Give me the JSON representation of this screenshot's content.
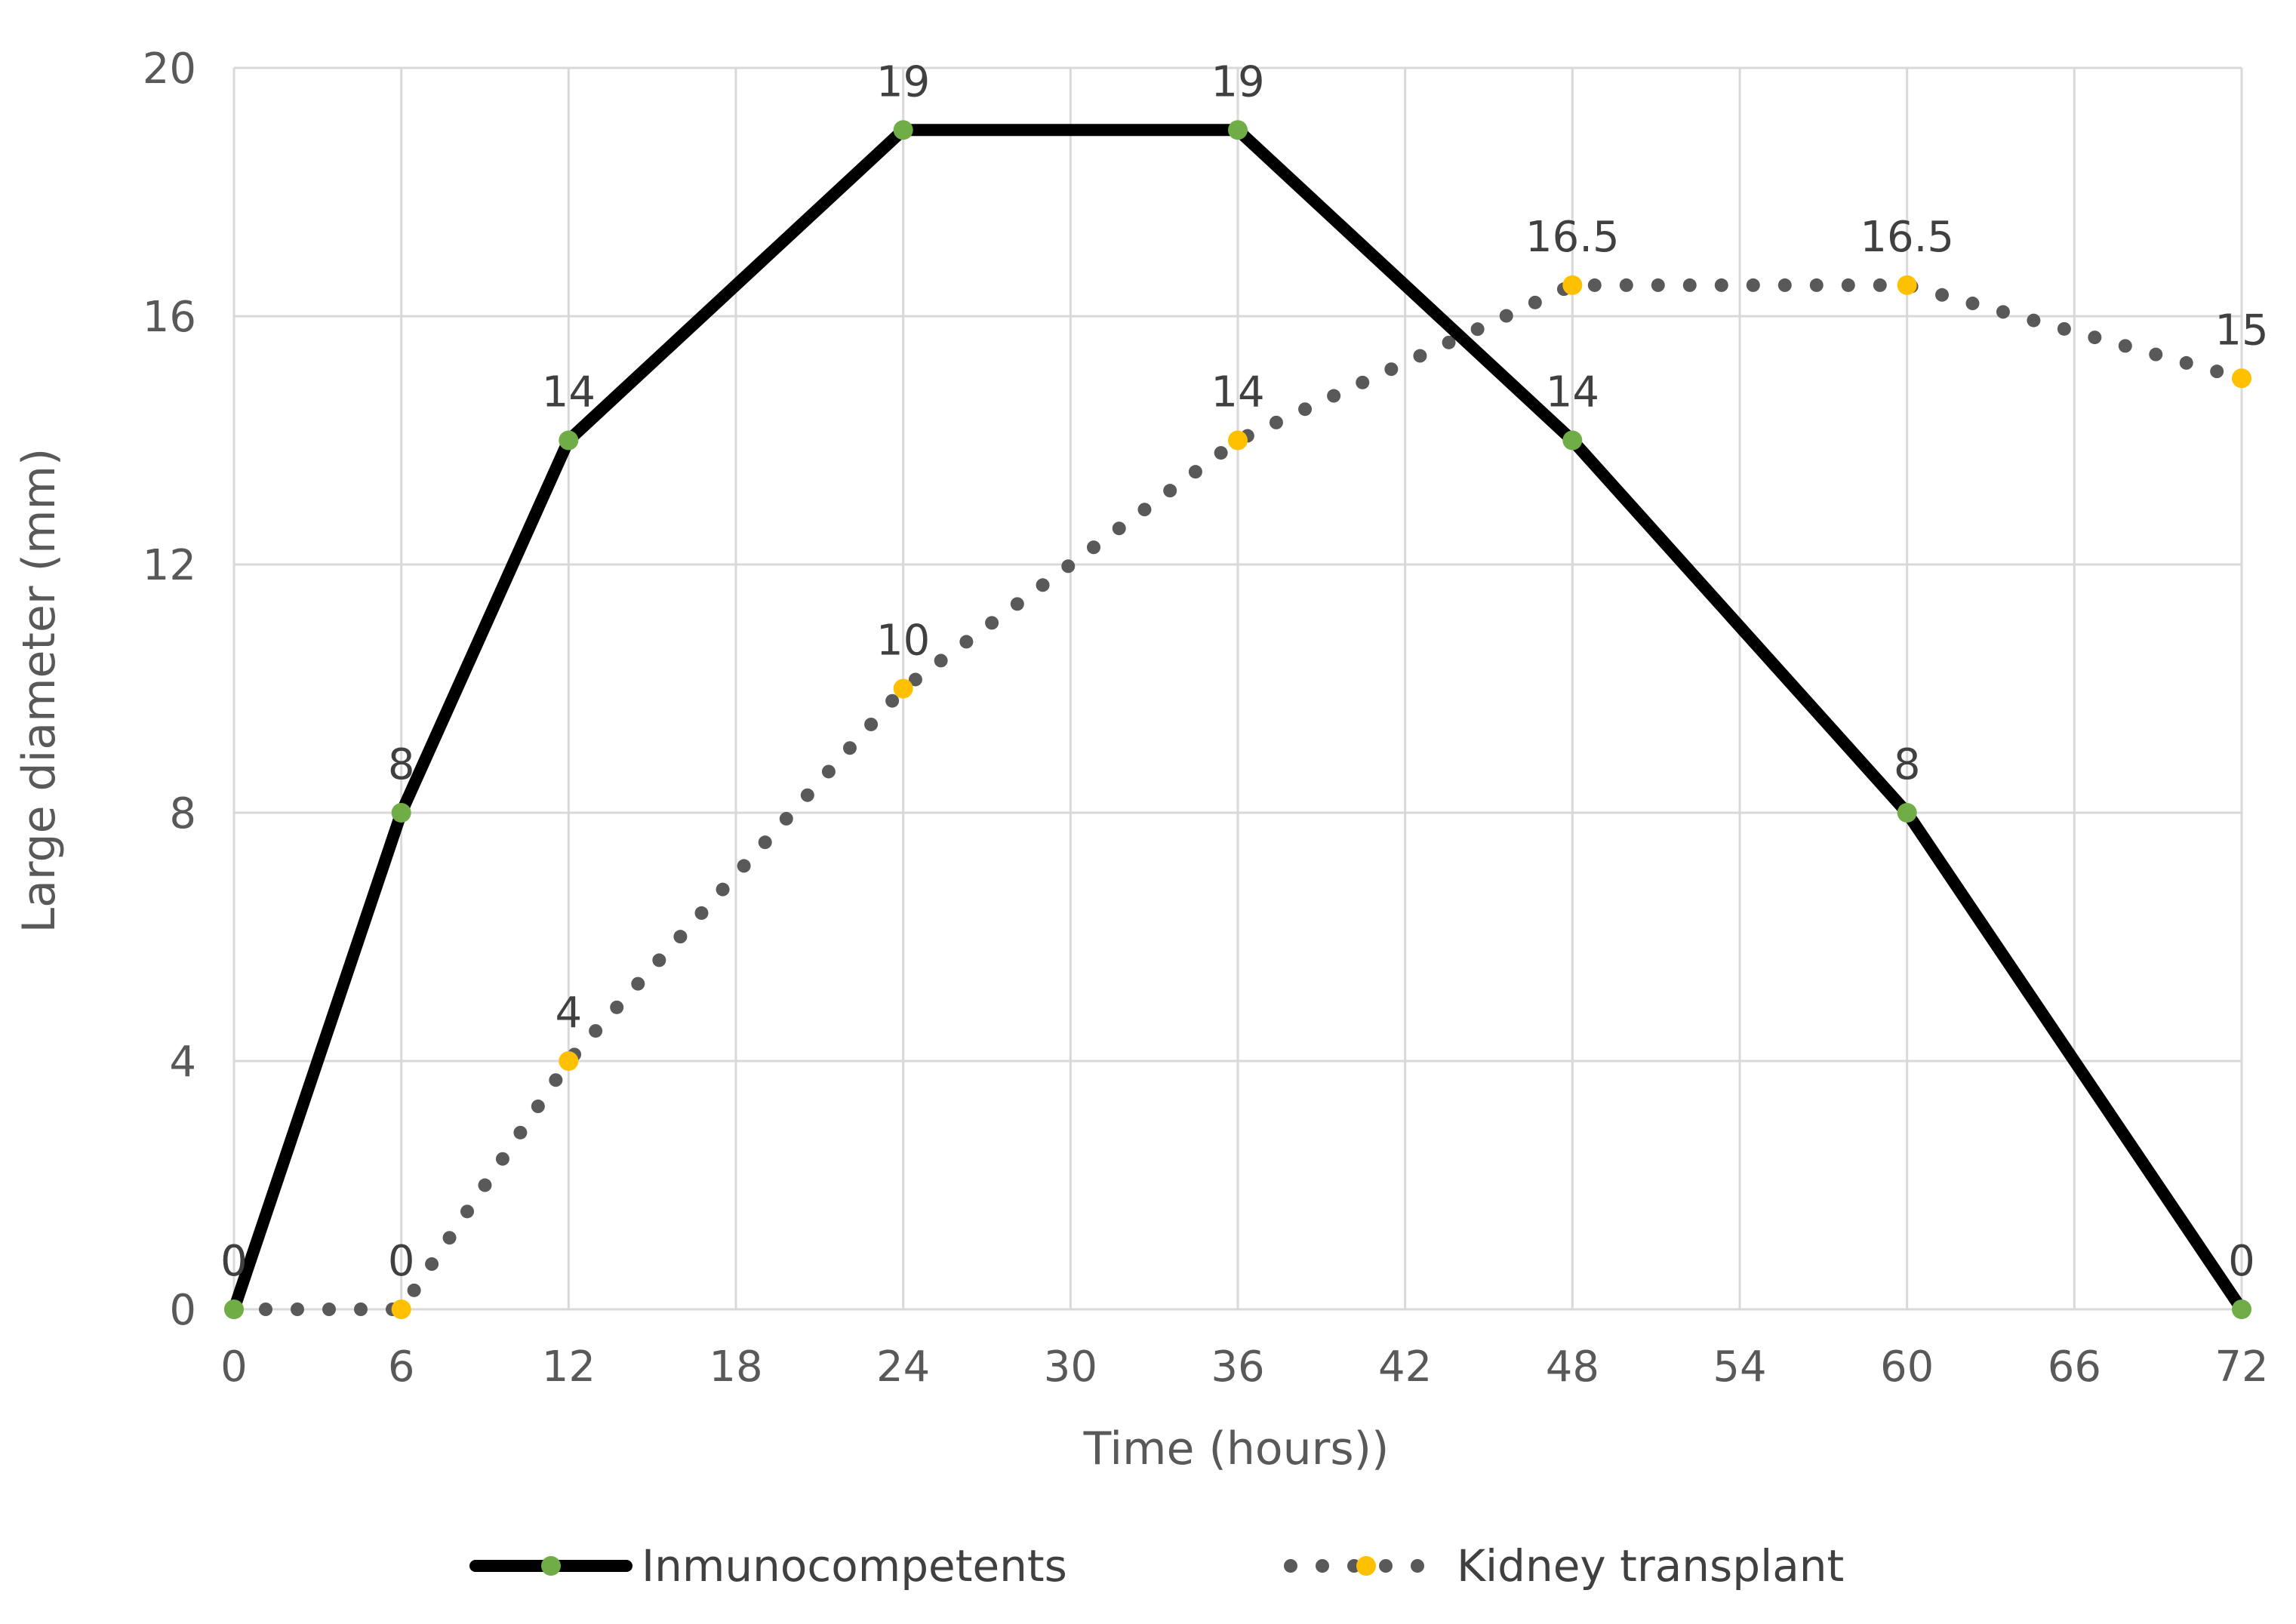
{
  "chart_data": {
    "type": "line",
    "title": "",
    "xlabel": "Time (hours))",
    "ylabel": "Large diameter (mm)",
    "x": [
      0,
      6,
      12,
      24,
      36,
      48,
      60,
      72
    ],
    "xlim": [
      0,
      72
    ],
    "ylim": [
      0,
      20
    ],
    "xticks": [
      0,
      6,
      12,
      18,
      24,
      30,
      36,
      42,
      48,
      54,
      60,
      66,
      72
    ],
    "yticks": [
      0,
      4,
      8,
      12,
      16,
      20
    ],
    "grid": true,
    "legend_position": "bottom",
    "series": [
      {
        "name": "Inmunocompetents",
        "values": [
          0,
          8,
          14,
          19,
          19,
          14,
          8,
          0
        ],
        "line_style": "solid",
        "line_color": "#000000",
        "marker_color": "#70ad47"
      },
      {
        "name": "Kidney transplant",
        "values": [
          0,
          0,
          4,
          10,
          14,
          16.5,
          16.5,
          15
        ],
        "line_style": "dotted",
        "line_color": "#595959",
        "marker_color": "#ffc000"
      }
    ]
  }
}
